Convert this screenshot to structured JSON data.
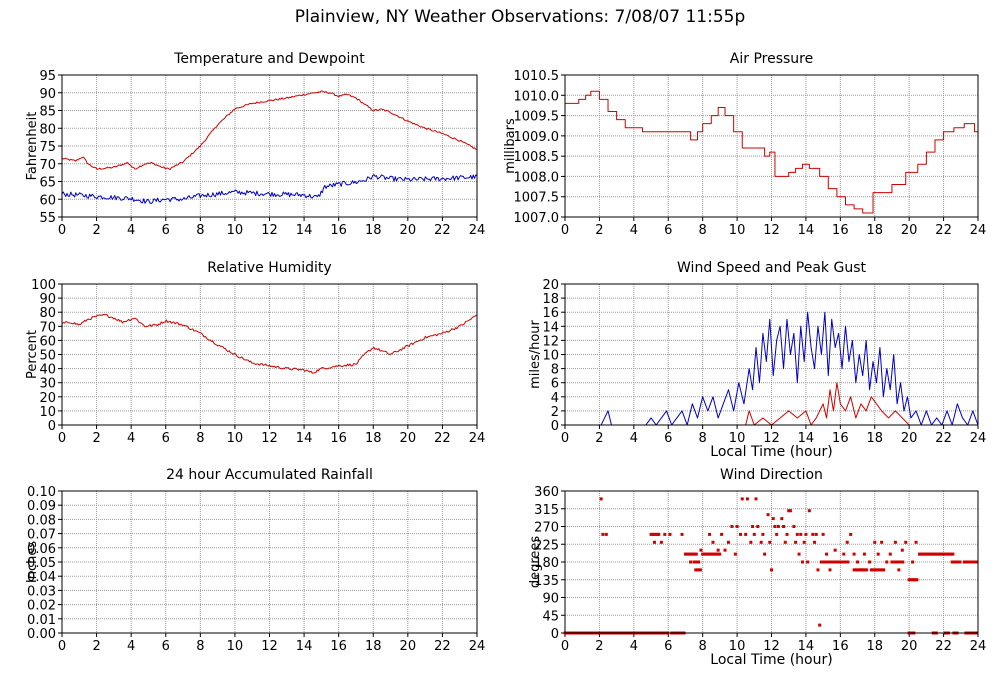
{
  "page": {
    "title": "Plainview, NY Weather Observations: 7/08/07 11:55p"
  },
  "colors": {
    "red": "#d00000",
    "blue": "#0000c8",
    "grid": "#999999",
    "frame": "#000000"
  },
  "chart_data": [
    {
      "id": "temperature",
      "type": "line",
      "title": "Temperature and Dewpoint",
      "xlabel": "",
      "ylabel": "Fahrenheit",
      "xlim": [
        0,
        24
      ],
      "ylim": [
        55,
        95
      ],
      "xticks": [
        0,
        2,
        4,
        6,
        8,
        10,
        12,
        14,
        16,
        18,
        20,
        22,
        24
      ],
      "yticks": [
        55,
        60,
        65,
        70,
        75,
        80,
        85,
        90,
        95
      ],
      "ytick_labels": [
        "55",
        "60",
        "65",
        "70",
        "75",
        "80",
        "85",
        "90",
        "95"
      ],
      "grid": true,
      "series": [
        {
          "color": "red",
          "noise": 0.25,
          "x": [
            0,
            0.8,
            1.2,
            1.5,
            2.0,
            3.0,
            3.8,
            4.2,
            4.8,
            5.2,
            5.8,
            6.2,
            7.0,
            8.0,
            9.0,
            10.0,
            11.0,
            12.0,
            13.0,
            14.0,
            15.0,
            15.5,
            16.0,
            16.5,
            17.0,
            18.0,
            18.5,
            19.0,
            20.0,
            21.0,
            22.0,
            23.0,
            24.0
          ],
          "y": [
            71.5,
            70.8,
            72.0,
            70.0,
            68.5,
            69.0,
            70.3,
            68.5,
            70.0,
            70.2,
            69.0,
            68.5,
            70.5,
            75.0,
            81.0,
            85.5,
            87.0,
            87.8,
            88.5,
            89.5,
            90.3,
            90.0,
            89.0,
            89.5,
            88.5,
            85.0,
            85.3,
            84.5,
            82.0,
            80.0,
            78.5,
            76.5,
            74.0
          ]
        },
        {
          "color": "blue",
          "noise": 0.7,
          "x": [
            0,
            2,
            4,
            5,
            6,
            7,
            8,
            10,
            12,
            14,
            14.8,
            15.2,
            16,
            17,
            17.6,
            18,
            19,
            20,
            22,
            24
          ],
          "y": [
            61.5,
            60.8,
            60.2,
            59.3,
            60.0,
            60.0,
            61.0,
            62.0,
            61.5,
            61.2,
            60.5,
            63.5,
            64.2,
            64.8,
            65.5,
            66.5,
            65.8,
            65.5,
            65.8,
            66.3
          ]
        }
      ]
    },
    {
      "id": "pressure",
      "type": "line",
      "title": "Air Pressure",
      "xlabel": "",
      "ylabel": "millibars",
      "xlim": [
        0,
        24
      ],
      "ylim": [
        1007.0,
        1010.5
      ],
      "xticks": [
        0,
        2,
        4,
        6,
        8,
        10,
        12,
        14,
        16,
        18,
        20,
        22,
        24
      ],
      "yticks": [
        1007.0,
        1007.5,
        1008.0,
        1008.5,
        1009.0,
        1009.5,
        1010.0,
        1010.5
      ],
      "ytick_labels": [
        "1007.0",
        "1007.5",
        "1008.0",
        "1008.5",
        "1009.0",
        "1009.5",
        "1010.0",
        "1010.5"
      ],
      "grid": true,
      "series": [
        {
          "color": "red",
          "step": true,
          "x": [
            0,
            0.8,
            1.2,
            1.5,
            2.0,
            2.5,
            3.0,
            3.5,
            4.5,
            5.5,
            7.0,
            7.3,
            7.7,
            8.0,
            8.5,
            8.9,
            9.3,
            9.8,
            10.3,
            11.0,
            11.6,
            11.9,
            12.2,
            13.0,
            13.4,
            13.8,
            14.2,
            14.8,
            15.3,
            15.8,
            16.3,
            16.8,
            17.3,
            17.9,
            19.0,
            19.8,
            20.5,
            21.0,
            21.5,
            22.0,
            22.6,
            23.2,
            23.8,
            24.0
          ],
          "y": [
            1009.8,
            1009.9,
            1010.0,
            1010.1,
            1009.9,
            1009.6,
            1009.4,
            1009.2,
            1009.1,
            1009.1,
            1009.1,
            1008.9,
            1009.1,
            1009.3,
            1009.5,
            1009.7,
            1009.5,
            1009.1,
            1008.7,
            1008.7,
            1008.5,
            1008.6,
            1008.0,
            1008.1,
            1008.2,
            1008.3,
            1008.2,
            1008.0,
            1007.7,
            1007.5,
            1007.3,
            1007.2,
            1007.1,
            1007.6,
            1007.8,
            1008.1,
            1008.3,
            1008.6,
            1008.9,
            1009.1,
            1009.2,
            1009.3,
            1009.1,
            1009.1
          ]
        }
      ]
    },
    {
      "id": "humidity",
      "type": "line",
      "title": "Relative Humidity",
      "xlabel": "",
      "ylabel": "Percent",
      "xlim": [
        0,
        24
      ],
      "ylim": [
        0,
        100
      ],
      "xticks": [
        0,
        2,
        4,
        6,
        8,
        10,
        12,
        14,
        16,
        18,
        20,
        22,
        24
      ],
      "yticks": [
        0,
        10,
        20,
        30,
        40,
        50,
        60,
        70,
        80,
        90,
        100
      ],
      "ytick_labels": [
        "0",
        "10",
        "20",
        "30",
        "40",
        "50",
        "60",
        "70",
        "80",
        "90",
        "100"
      ],
      "grid": true,
      "series": [
        {
          "color": "red",
          "noise": 0.9,
          "x": [
            0,
            0.5,
            1.0,
            1.5,
            2.0,
            2.5,
            3.0,
            3.5,
            4.2,
            4.8,
            5.5,
            6.0,
            7.0,
            8.0,
            9.0,
            10.0,
            11.0,
            12.0,
            13.0,
            14.0,
            14.5,
            15.0,
            15.5,
            16.0,
            17.0,
            17.5,
            18.0,
            19.0,
            20.0,
            21.0,
            22.0,
            23.0,
            24.0
          ],
          "y": [
            72,
            73,
            71,
            75,
            77,
            78,
            76,
            73,
            76,
            70,
            71,
            74,
            71,
            65,
            57,
            50,
            44,
            42,
            40,
            39,
            37,
            40,
            41,
            42,
            43,
            50,
            55,
            50,
            56,
            62,
            65,
            70,
            78
          ]
        }
      ]
    },
    {
      "id": "wind_speed",
      "type": "line",
      "title": "Wind Speed and Peak Gust",
      "xlabel": "Local Time (hour)",
      "ylabel": "miles/hour",
      "xlim": [
        0,
        24
      ],
      "ylim": [
        0,
        20
      ],
      "xticks": [
        0,
        2,
        4,
        6,
        8,
        10,
        12,
        14,
        16,
        18,
        20,
        22,
        24
      ],
      "yticks": [
        0,
        2,
        4,
        6,
        8,
        10,
        12,
        14,
        16,
        18,
        20
      ],
      "ytick_labels": [
        "0",
        "2",
        "4",
        "6",
        "8",
        "10",
        "12",
        "14",
        "16",
        "18",
        "20"
      ],
      "grid": true,
      "series": [
        {
          "color": "blue",
          "x": [
            0,
            2.1,
            2.3,
            2.5,
            2.7,
            4.7,
            5.0,
            5.3,
            5.6,
            5.9,
            6.2,
            6.5,
            6.8,
            7.1,
            7.4,
            7.7,
            8.0,
            8.3,
            8.6,
            8.9,
            9.2,
            9.5,
            9.8,
            10.1,
            10.4,
            10.7,
            10.9,
            11.1,
            11.3,
            11.5,
            11.7,
            11.9,
            12.1,
            12.3,
            12.5,
            12.7,
            12.9,
            13.1,
            13.3,
            13.5,
            13.7,
            13.9,
            14.1,
            14.3,
            14.5,
            14.7,
            14.9,
            15.1,
            15.3,
            15.5,
            15.7,
            15.9,
            16.1,
            16.3,
            16.5,
            16.7,
            16.9,
            17.1,
            17.3,
            17.5,
            17.7,
            17.9,
            18.1,
            18.3,
            18.5,
            18.7,
            18.9,
            19.1,
            19.3,
            19.5,
            19.7,
            19.9,
            20.1,
            20.4,
            20.7,
            21.0,
            21.3,
            21.6,
            21.9,
            22.2,
            22.5,
            22.8,
            23.1,
            23.4,
            23.7,
            24.0
          ],
          "y": [
            0,
            0,
            1,
            2,
            0,
            0,
            1,
            0,
            1,
            2,
            0,
            1,
            2,
            0,
            3,
            1,
            4,
            2,
            4,
            1,
            3,
            5,
            2,
            6,
            3,
            8,
            5,
            11,
            6,
            13,
            9,
            15,
            7,
            12,
            14,
            8,
            15,
            10,
            13,
            6,
            14,
            9,
            16,
            11,
            8,
            14,
            10,
            16,
            7,
            15,
            11,
            13,
            8,
            14,
            9,
            12,
            6,
            10,
            7,
            12,
            5,
            9,
            6,
            11,
            4,
            8,
            5,
            10,
            3,
            6,
            2,
            4,
            1,
            2,
            0,
            2,
            0,
            1,
            0,
            2,
            0,
            3,
            1,
            0,
            2,
            0
          ]
        },
        {
          "color": "red",
          "x": [
            0,
            10.0,
            10.5,
            10.7,
            11.0,
            11.5,
            12.0,
            12.5,
            13.0,
            13.5,
            14.0,
            14.3,
            14.6,
            14.8,
            15.0,
            15.2,
            15.4,
            15.6,
            15.8,
            16.0,
            16.3,
            16.6,
            16.9,
            17.2,
            17.5,
            17.8,
            18.1,
            18.4,
            18.8,
            19.2,
            19.6,
            20.0,
            24.0
          ],
          "y": [
            0,
            0,
            0,
            2,
            0,
            1,
            0,
            1,
            2,
            1,
            2,
            0,
            1,
            2,
            3,
            1,
            5,
            2,
            6,
            3,
            2,
            4,
            1,
            3,
            2,
            4,
            3,
            2,
            1,
            2,
            1,
            0,
            0
          ]
        }
      ]
    },
    {
      "id": "rainfall",
      "type": "line",
      "title": "24 hour Accumulated Rainfall",
      "xlabel": "",
      "ylabel": "Inches",
      "xlim": [
        0,
        24
      ],
      "ylim": [
        0,
        0.1
      ],
      "xticks": [
        0,
        2,
        4,
        6,
        8,
        10,
        12,
        14,
        16,
        18,
        20,
        22,
        24
      ],
      "yticks": [
        0.0,
        0.01,
        0.02,
        0.03,
        0.04,
        0.05,
        0.06,
        0.07,
        0.08,
        0.09,
        0.1
      ],
      "ytick_labels": [
        "0.00",
        "0.01",
        "0.02",
        "0.03",
        "0.04",
        "0.05",
        "0.06",
        "0.07",
        "0.08",
        "0.09",
        "0.10"
      ],
      "grid": true,
      "series": [
        {
          "color": "red",
          "x": [
            0,
            24
          ],
          "y": [
            0,
            0
          ]
        }
      ]
    },
    {
      "id": "wind_direction",
      "type": "scatter",
      "title": "Wind Direction",
      "xlabel": "Local Time (hour)",
      "ylabel": "degrees",
      "xlim": [
        0,
        24
      ],
      "ylim": [
        0,
        360
      ],
      "xticks": [
        0,
        2,
        4,
        6,
        8,
        10,
        12,
        14,
        16,
        18,
        20,
        22,
        24
      ],
      "yticks": [
        0,
        45,
        90,
        135,
        180,
        225,
        270,
        315,
        360
      ],
      "ytick_labels": [
        "0",
        "45",
        "90",
        "135",
        "180",
        "225",
        "270",
        "315",
        "360"
      ],
      "grid": true,
      "series": [
        {
          "color": "red",
          "marker": "square",
          "segments": [
            [
              0.0,
              4.7,
              0.0
            ],
            [
              4.8,
              6.0,
              0.0
            ],
            [
              6.2,
              7.0,
              0.0
            ],
            [
              20.0,
              20.3,
              0.0
            ],
            [
              21.4,
              21.6,
              0.0
            ],
            [
              22.1,
              22.3,
              0.0
            ],
            [
              22.6,
              22.8,
              0.0
            ],
            [
              23.3,
              24.0,
              0.0
            ],
            [
              5.0,
              5.5,
              250
            ],
            [
              7.0,
              7.7,
              200
            ],
            [
              7.5,
              7.8,
              180
            ],
            [
              7.6,
              7.9,
              160
            ],
            [
              8.0,
              9.0,
              200
            ],
            [
              15.0,
              16.5,
              180
            ],
            [
              16.8,
              17.6,
              160
            ],
            [
              17.8,
              18.6,
              160
            ],
            [
              19.0,
              19.7,
              180
            ],
            [
              20.0,
              20.5,
              135
            ],
            [
              20.6,
              22.0,
              200
            ],
            [
              22.0,
              22.6,
              200
            ],
            [
              22.5,
              23.0,
              180
            ],
            [
              23.2,
              24.0,
              180
            ]
          ],
          "x": [
            2.1,
            2.2,
            2.4,
            5.2,
            5.6,
            5.8,
            6.1,
            6.8,
            7.3,
            7.9,
            8.4,
            8.6,
            8.9,
            9.1,
            9.3,
            9.5,
            9.7,
            9.9,
            10.0,
            10.2,
            10.3,
            10.5,
            10.6,
            10.8,
            10.9,
            11.0,
            11.1,
            11.2,
            11.4,
            11.5,
            11.6,
            11.8,
            11.9,
            12.0,
            12.1,
            12.2,
            12.3,
            12.4,
            12.6,
            12.7,
            12.8,
            12.9,
            13.0,
            13.1,
            13.3,
            13.4,
            13.5,
            13.6,
            13.7,
            13.8,
            13.9,
            14.0,
            14.1,
            14.2,
            14.4,
            14.5,
            14.6,
            14.7,
            14.8,
            14.9,
            15.0,
            15.2,
            15.4,
            15.5,
            15.7,
            15.9,
            16.2,
            16.4,
            16.6,
            16.8,
            17.0,
            17.2,
            17.4,
            17.7,
            18.0,
            18.2,
            18.4,
            18.7,
            18.9,
            19.2,
            19.4,
            19.6,
            19.8,
            20.2,
            20.4
          ],
          "y": [
            340,
            250,
            250,
            230,
            230,
            250,
            250,
            250,
            180,
            210,
            250,
            230,
            210,
            250,
            210,
            230,
            270,
            200,
            270,
            250,
            340,
            250,
            340,
            230,
            270,
            250,
            340,
            270,
            230,
            250,
            200,
            300,
            230,
            160,
            290,
            270,
            250,
            270,
            290,
            270,
            230,
            250,
            310,
            310,
            270,
            230,
            250,
            200,
            250,
            180,
            230,
            250,
            180,
            310,
            250,
            230,
            250,
            160,
            20,
            180,
            250,
            200,
            160,
            180,
            210,
            180,
            200,
            230,
            250,
            200,
            180,
            160,
            200,
            180,
            230,
            200,
            230,
            180,
            200,
            230,
            160,
            210,
            230,
            180,
            230
          ]
        }
      ]
    }
  ]
}
